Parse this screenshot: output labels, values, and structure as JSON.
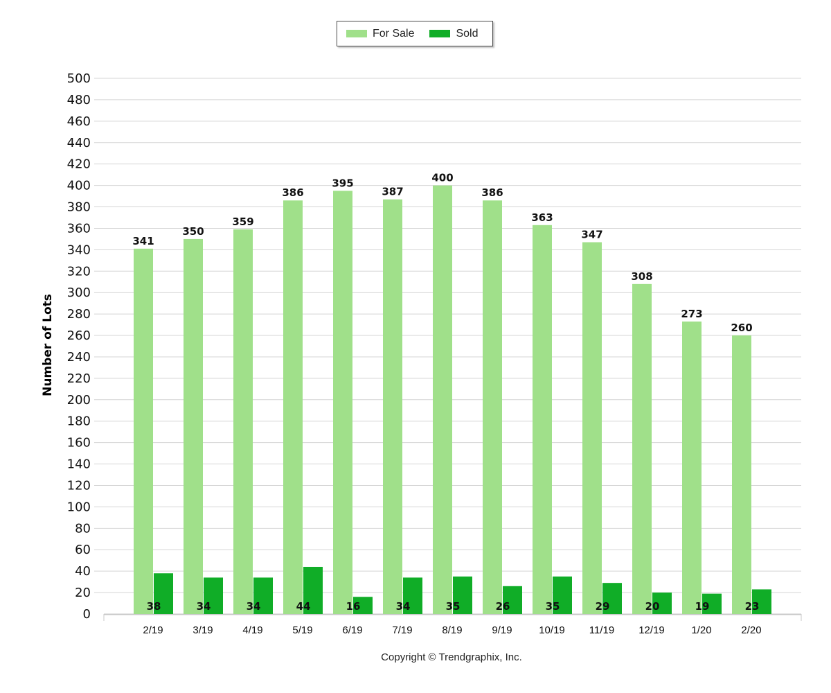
{
  "chart_data": {
    "type": "bar",
    "ylabel": "Number of Lots",
    "ylim": [
      0,
      500
    ],
    "y_tick_step": 20,
    "grid": true,
    "legend_position": "top-center",
    "categories": [
      "2/19",
      "3/19",
      "4/19",
      "5/19",
      "6/19",
      "7/19",
      "8/19",
      "9/19",
      "10/19",
      "11/19",
      "12/19",
      "1/20",
      "2/20"
    ],
    "series": [
      {
        "name": "For Sale",
        "color": "#a0e08a",
        "values": [
          341,
          350,
          359,
          386,
          395,
          387,
          400,
          386,
          363,
          347,
          308,
          273,
          260
        ]
      },
      {
        "name": "Sold",
        "color": "#10ad27",
        "values": [
          38,
          34,
          34,
          44,
          16,
          34,
          35,
          26,
          35,
          29,
          20,
          19,
          23
        ]
      }
    ]
  },
  "footer": {
    "copyright": "Copyright © Trendgraphix, Inc."
  }
}
